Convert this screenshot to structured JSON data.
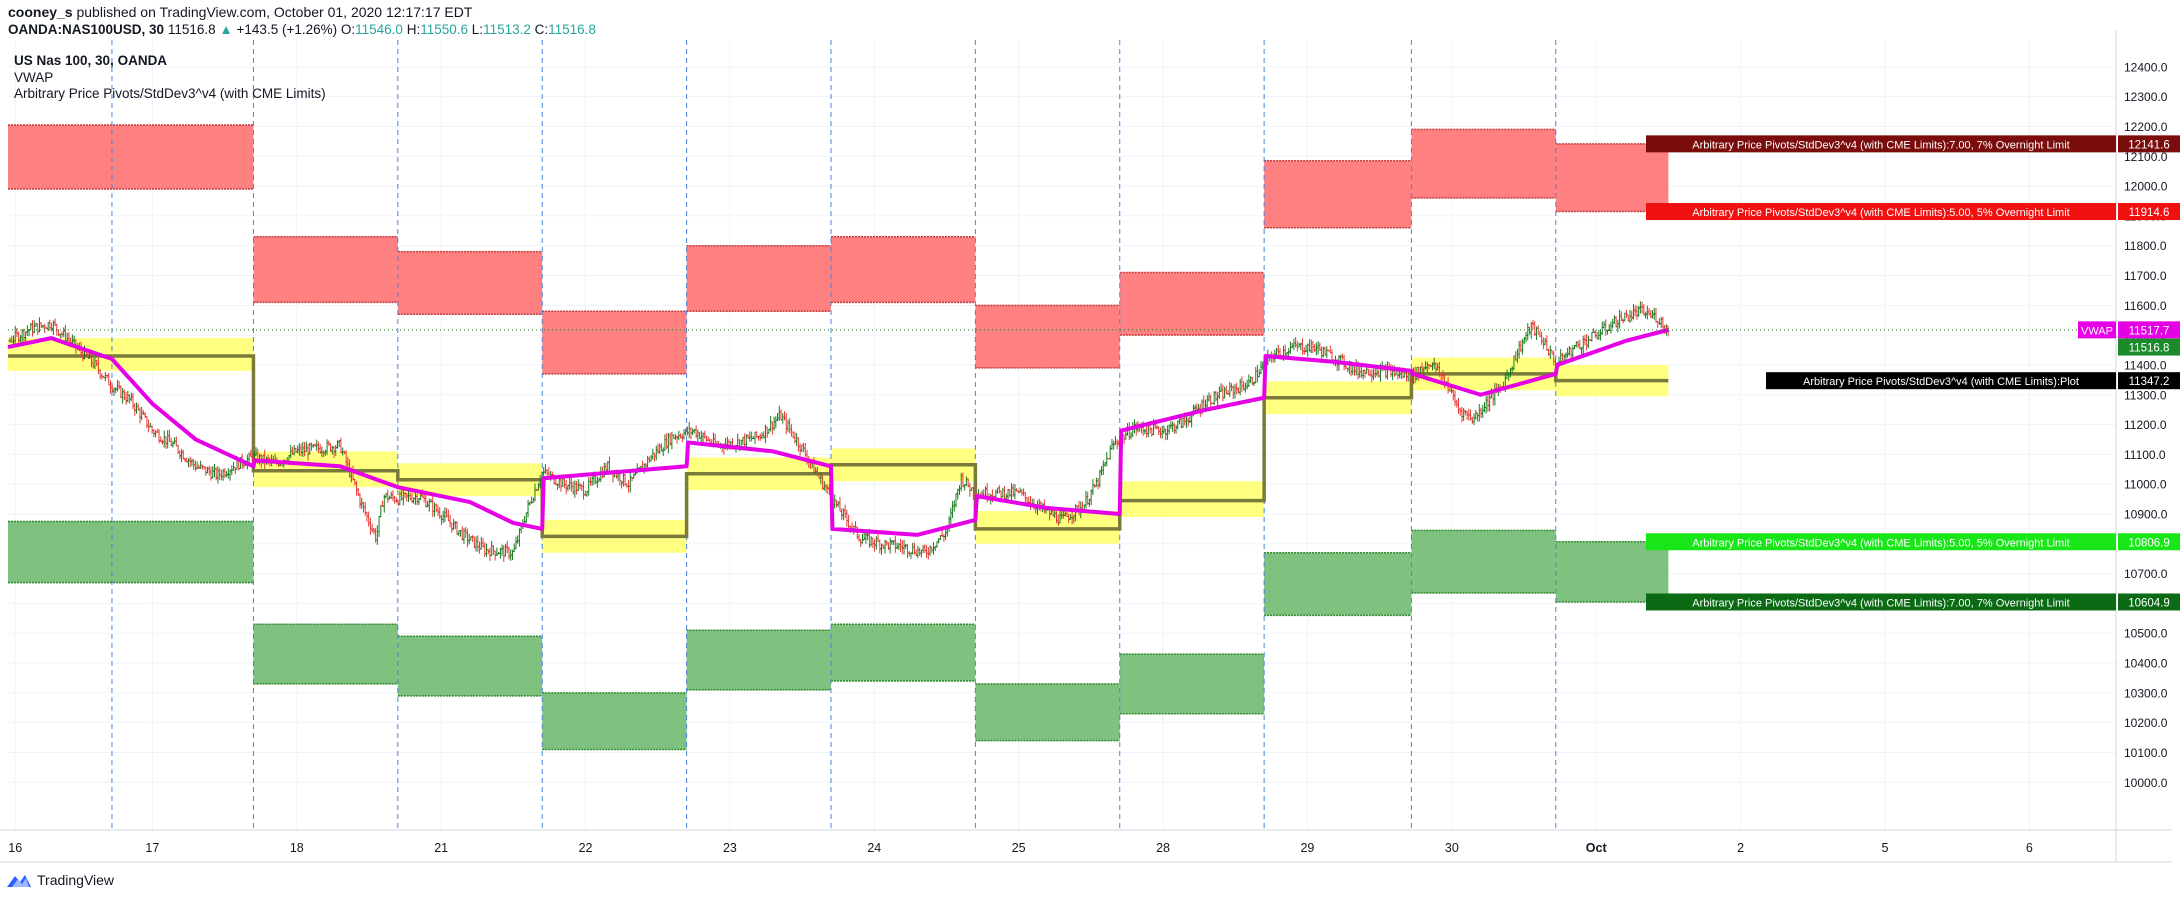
{
  "header": {
    "user": "cooney_s",
    "published_text": "published on TradingView.com, October 01, 2020 12:17:17 EDT",
    "symbol": "OANDA:NAS100USD, 30",
    "last": "11516.8",
    "change": "+143.5 (+1.26%)",
    "o_label": "O:",
    "o": "11546.0",
    "h_label": "H:",
    "h": "11550.6",
    "l_label": "L:",
    "l": "11513.2",
    "c_label": "C:",
    "c": "11516.8"
  },
  "legend": [
    "US Nas 100, 30, OANDA",
    "VWAP",
    "Arbitrary Price Pivots/StdDev3^v4 (with CME Limits)"
  ],
  "colors": {
    "up": "#1b7a1f",
    "down": "#e53935",
    "vwap": "#e600e6",
    "pivot": "#7a7a3a",
    "upper_band": "#ff8080",
    "lower_band": "#7fc17f",
    "pivot_zone": "#ffff80",
    "separator": "#4a84d6",
    "grid": "#f0f3fa"
  },
  "footer": {
    "brand": "TradingView",
    "logo_icon": "tradingview-logo-icon"
  },
  "chart_data": {
    "type": "line",
    "y_axis": {
      "range": [
        9840,
        12490
      ],
      "ticks": [
        10000,
        10100,
        10200,
        10300,
        10400,
        10500,
        10600,
        10700,
        10800,
        10900,
        11000,
        11100,
        11200,
        11300,
        11400,
        11500,
        11600,
        11700,
        11800,
        11900,
        12000,
        12100,
        12200,
        12300,
        12400
      ],
      "tick_labels": [
        "10000.0",
        "10100.0",
        "10200.0",
        "10300.0",
        "10400.0",
        "10500.0",
        "10600.0",
        "10700.0",
        "10800.0",
        "10900.0",
        "11000.0",
        "11100.0",
        "11200.0",
        "11300.0",
        "11400.0",
        "11500.0",
        "11600.0",
        "11700.0",
        "11800.0",
        "11900.0",
        "12000.0",
        "12100.0",
        "12200.0",
        "12300.0",
        "12400.0"
      ]
    },
    "x_axis": {
      "range": [
        0,
        14.6
      ],
      "ticks": [
        {
          "x": 0.05,
          "label": "16",
          "bold": false
        },
        {
          "x": 1.0,
          "label": "17",
          "bold": false
        },
        {
          "x": 2.0,
          "label": "18",
          "bold": false
        },
        {
          "x": 3.0,
          "label": "21",
          "bold": false
        },
        {
          "x": 4.0,
          "label": "22",
          "bold": false
        },
        {
          "x": 5.0,
          "label": "23",
          "bold": false
        },
        {
          "x": 6.0,
          "label": "24",
          "bold": false
        },
        {
          "x": 7.0,
          "label": "25",
          "bold": false
        },
        {
          "x": 8.0,
          "label": "28",
          "bold": false
        },
        {
          "x": 9.0,
          "label": "29",
          "bold": false
        },
        {
          "x": 10.0,
          "label": "30",
          "bold": false
        },
        {
          "x": 11.0,
          "label": "Oct",
          "bold": true
        },
        {
          "x": 12.0,
          "label": "2",
          "bold": false
        },
        {
          "x": 13.0,
          "label": "5",
          "bold": false
        },
        {
          "x": 14.0,
          "label": "6",
          "bold": false
        }
      ]
    },
    "session_boundaries": [
      0.72,
      1.7,
      2.7,
      3.7,
      4.7,
      5.7,
      6.7,
      7.7,
      8.7,
      9.72,
      10.72
    ],
    "sessions": [
      {
        "start": -0.25,
        "end": 1.7,
        "pivot": 11430,
        "zone": [
          11380,
          11490
        ],
        "r7": 12205,
        "r5": 11990,
        "s5": 10875,
        "s7": 10670
      },
      {
        "start": 1.7,
        "end": 2.7,
        "pivot": 11045,
        "zone": [
          10990,
          11110
        ],
        "r7": 11830,
        "r5": 11610,
        "s5": 10530,
        "s7": 10330
      },
      {
        "start": 2.7,
        "end": 3.7,
        "pivot": 11015,
        "zone": [
          10960,
          11070
        ],
        "r7": 11780,
        "r5": 11570,
        "s5": 10490,
        "s7": 10290
      },
      {
        "start": 3.7,
        "end": 4.7,
        "pivot": 10825,
        "zone": [
          10770,
          10880
        ],
        "r7": 11580,
        "r5": 11370,
        "s5": 10300,
        "s7": 10110
      },
      {
        "start": 4.7,
        "end": 5.7,
        "pivot": 11035,
        "zone": [
          10980,
          11090
        ],
        "r7": 11800,
        "r5": 11580,
        "s5": 10510,
        "s7": 10310
      },
      {
        "start": 5.7,
        "end": 6.7,
        "pivot": 11065,
        "zone": [
          11010,
          11120
        ],
        "r7": 11830,
        "r5": 11610,
        "s5": 10530,
        "s7": 10340
      },
      {
        "start": 6.7,
        "end": 7.7,
        "pivot": 10850,
        "zone": [
          10800,
          10910
        ],
        "r7": 11600,
        "r5": 11390,
        "s5": 10330,
        "s7": 10140
      },
      {
        "start": 7.7,
        "end": 8.7,
        "pivot": 10945,
        "zone": [
          10890,
          11010
        ],
        "r7": 11710,
        "r5": 11500,
        "s5": 10430,
        "s7": 10230
      },
      {
        "start": 8.7,
        "end": 9.72,
        "pivot": 11290,
        "zone": [
          11235,
          11345
        ],
        "r7": 12085,
        "r5": 11860,
        "s5": 10770,
        "s7": 10560
      },
      {
        "start": 9.72,
        "end": 10.72,
        "pivot": 11370,
        "zone": [
          11315,
          11425
        ],
        "r7": 12190,
        "r5": 11960,
        "s5": 10845,
        "s7": 10635
      },
      {
        "start": 10.72,
        "end": 11.5,
        "pivot": 11347.2,
        "zone": [
          11295,
          11400
        ],
        "r7": 12141.6,
        "r5": 11914.6,
        "s5": 10806.9,
        "s7": 10604.9
      }
    ],
    "price_path": [
      [
        -0.25,
        11470
      ],
      [
        0.0,
        11480
      ],
      [
        0.15,
        11520
      ],
      [
        0.3,
        11540
      ],
      [
        0.45,
        11470
      ],
      [
        0.6,
        11400
      ],
      [
        0.72,
        11330
      ],
      [
        0.85,
        11280
      ],
      [
        1.0,
        11180
      ],
      [
        1.15,
        11130
      ],
      [
        1.3,
        11060
      ],
      [
        1.45,
        11030
      ],
      [
        1.6,
        11070
      ],
      [
        1.7,
        11090
      ],
      [
        1.85,
        11070
      ],
      [
        2.0,
        11110
      ],
      [
        2.15,
        11120
      ],
      [
        2.3,
        11130
      ],
      [
        2.45,
        10930
      ],
      [
        2.55,
        10820
      ],
      [
        2.6,
        10960
      ],
      [
        2.7,
        10950
      ],
      [
        2.85,
        10960
      ],
      [
        3.0,
        10900
      ],
      [
        3.15,
        10830
      ],
      [
        3.3,
        10780
      ],
      [
        3.5,
        10770
      ],
      [
        3.6,
        10920
      ],
      [
        3.7,
        11040
      ],
      [
        3.85,
        11000
      ],
      [
        4.0,
        10980
      ],
      [
        4.15,
        11060
      ],
      [
        4.3,
        11000
      ],
      [
        4.45,
        11090
      ],
      [
        4.6,
        11160
      ],
      [
        4.75,
        11180
      ],
      [
        4.9,
        11130
      ],
      [
        5.05,
        11140
      ],
      [
        5.2,
        11160
      ],
      [
        5.35,
        11230
      ],
      [
        5.5,
        11120
      ],
      [
        5.62,
        11020
      ],
      [
        5.75,
        10920
      ],
      [
        5.9,
        10820
      ],
      [
        6.05,
        10800
      ],
      [
        6.2,
        10790
      ],
      [
        6.35,
        10770
      ],
      [
        6.5,
        10840
      ],
      [
        6.6,
        11020
      ],
      [
        6.7,
        10970
      ],
      [
        6.85,
        10970
      ],
      [
        7.0,
        10970
      ],
      [
        7.15,
        10920
      ],
      [
        7.3,
        10880
      ],
      [
        7.45,
        10930
      ],
      [
        7.55,
        11010
      ],
      [
        7.65,
        11130
      ],
      [
        7.8,
        11190
      ],
      [
        8.0,
        11180
      ],
      [
        8.15,
        11210
      ],
      [
        8.3,
        11280
      ],
      [
        8.45,
        11310
      ],
      [
        8.6,
        11340
      ],
      [
        8.75,
        11430
      ],
      [
        8.9,
        11460
      ],
      [
        9.05,
        11460
      ],
      [
        9.2,
        11420
      ],
      [
        9.35,
        11380
      ],
      [
        9.55,
        11380
      ],
      [
        9.72,
        11360
      ],
      [
        9.85,
        11410
      ],
      [
        9.95,
        11350
      ],
      [
        10.05,
        11250
      ],
      [
        10.15,
        11220
      ],
      [
        10.25,
        11280
      ],
      [
        10.35,
        11330
      ],
      [
        10.45,
        11440
      ],
      [
        10.55,
        11530
      ],
      [
        10.65,
        11470
      ],
      [
        10.72,
        11400
      ],
      [
        10.85,
        11460
      ],
      [
        11.0,
        11500
      ],
      [
        11.15,
        11550
      ],
      [
        11.3,
        11580
      ],
      [
        11.42,
        11560
      ],
      [
        11.5,
        11516.8
      ]
    ],
    "vwap_path": [
      [
        -0.25,
        11460
      ],
      [
        0.3,
        11490
      ],
      [
        0.72,
        11420
      ],
      [
        1.0,
        11270
      ],
      [
        1.3,
        11150
      ],
      [
        1.7,
        11060
      ],
      [
        1.71,
        11080
      ],
      [
        2.3,
        11060
      ],
      [
        2.7,
        10990
      ],
      [
        3.2,
        10940
      ],
      [
        3.5,
        10870
      ],
      [
        3.7,
        10850
      ],
      [
        3.71,
        11020
      ],
      [
        4.2,
        11040
      ],
      [
        4.7,
        11060
      ],
      [
        4.71,
        11140
      ],
      [
        5.3,
        11110
      ],
      [
        5.7,
        11060
      ],
      [
        5.71,
        10850
      ],
      [
        6.3,
        10830
      ],
      [
        6.7,
        10880
      ],
      [
        6.71,
        10960
      ],
      [
        7.2,
        10920
      ],
      [
        7.7,
        10900
      ],
      [
        7.71,
        11180
      ],
      [
        8.3,
        11250
      ],
      [
        8.7,
        11290
      ],
      [
        8.71,
        11430
      ],
      [
        9.2,
        11410
      ],
      [
        9.72,
        11380
      ],
      [
        9.73,
        11370
      ],
      [
        10.2,
        11300
      ],
      [
        10.72,
        11370
      ],
      [
        10.73,
        11400
      ],
      [
        11.2,
        11480
      ],
      [
        11.5,
        11517.7
      ]
    ],
    "right_labels": [
      {
        "text": "Arbitrary Price Pivots/StdDev3^v4 (with CME Limits):7.00, 7% Overnight Limit",
        "value": "12141.6",
        "price": 12141.6,
        "bg": "#7a0c0c"
      },
      {
        "text": "Arbitrary Price Pivots/StdDev3^v4 (with CME Limits):5.00, 5% Overnight Limit",
        "value": "11914.6",
        "price": 11914.6,
        "bg": "#f01010"
      },
      {
        "text": "VWAP",
        "value": "11517.7",
        "price": 11517.7,
        "bg": "#e600e6"
      },
      {
        "text": "",
        "value": "11516.8",
        "price": 11460,
        "bg": "#1b8a2a"
      },
      {
        "text": "Arbitrary Price Pivots/StdDev3^v4 (with CME Limits):Plot",
        "value": "11347.2",
        "price": 11347.2,
        "bg": "#000000"
      },
      {
        "text": "Arbitrary Price Pivots/StdDev3^v4 (with CME Limits):5.00, 5% Overnight Limit",
        "value": "10806.9",
        "price": 10806.9,
        "bg": "#19e619"
      },
      {
        "text": "Arbitrary Price Pivots/StdDev3^v4 (with CME Limits):7.00, 7% Overnight Limit",
        "value": "10604.9",
        "price": 10604.9,
        "bg": "#0a6b14"
      }
    ]
  }
}
